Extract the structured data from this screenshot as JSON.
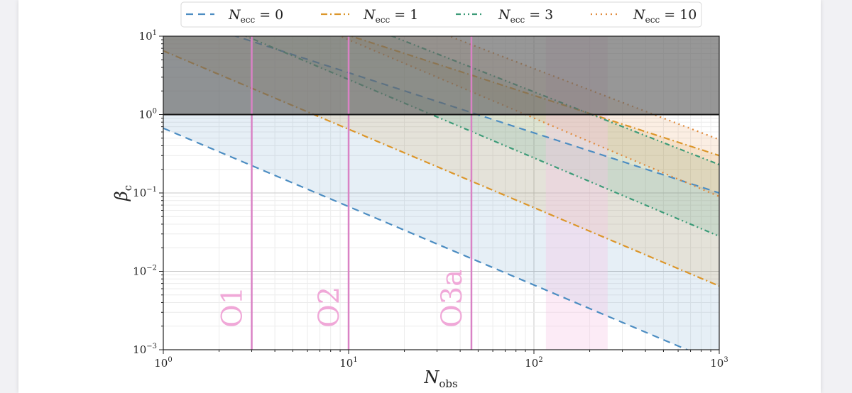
{
  "chart_data": {
    "type": "line",
    "xlabel": {
      "main": "N",
      "sub": "obs"
    },
    "ylabel": {
      "main": "β",
      "sub": "c"
    },
    "xscale": "log",
    "yscale": "log",
    "xlim": [
      1,
      1000
    ],
    "ylim": [
      0.001,
      10
    ],
    "grid": true,
    "legend_position": "top",
    "x_ticks": [
      {
        "base": "10",
        "exp": "0",
        "value": 1
      },
      {
        "base": "10",
        "exp": "1",
        "value": 10
      },
      {
        "base": "10",
        "exp": "2",
        "value": 100
      },
      {
        "base": "10",
        "exp": "3",
        "value": 1000
      }
    ],
    "y_ticks": [
      {
        "base": "10",
        "exp": "1",
        "value": 10
      },
      {
        "base": "10",
        "exp": "0",
        "value": 1
      },
      {
        "base": "10",
        "exp": "−1",
        "value": 0.1
      },
      {
        "base": "10",
        "exp": "−2",
        "value": 0.01
      },
      {
        "base": "10",
        "exp": "−3",
        "value": 0.001
      }
    ],
    "series": [
      {
        "legend_main": "N",
        "legend_sub": "ecc",
        "legend_rest": " = 0",
        "color": "#4c8dc2",
        "dash": "10,7",
        "lower": {
          "x": [
            1,
            1000
          ],
          "y": [
            0.67,
            0.00067
          ]
        },
        "upper": {
          "x": [
            1,
            1000
          ],
          "y": [
            20,
            0.1
          ]
        }
      },
      {
        "legend_main": "N",
        "legend_sub": "ecc",
        "legend_rest": " = 1",
        "color": "#dc962a",
        "dash": "9,4,2,4",
        "lower": {
          "x": [
            1,
            1000
          ],
          "y": [
            6.5,
            0.0065
          ]
        },
        "upper": {
          "x": [
            1,
            1000
          ],
          "y": [
            60,
            0.3
          ]
        }
      },
      {
        "legend_main": "N",
        "legend_sub": "ecc",
        "legend_rest": " = 3",
        "color": "#3c9b78",
        "dash": "7,4,2,4,2,4",
        "lower": {
          "x": [
            1,
            1000
          ],
          "y": [
            28,
            0.028
          ]
        },
        "upper": {
          "x": [
            1,
            1000
          ],
          "y": [
            140,
            0.23
          ]
        }
      },
      {
        "legend_main": "N",
        "legend_sub": "ecc",
        "legend_rest": " = 10",
        "color": "#e08a3c",
        "dash": "2,5",
        "lower": {
          "x": [
            1,
            1000
          ],
          "y": [
            90,
            0.09
          ]
        },
        "upper": {
          "x": [
            1,
            1000
          ],
          "y": [
            250,
            0.48
          ]
        }
      }
    ],
    "exclusion_region": {
      "y_from": 1,
      "y_to": 10,
      "color": "#666666",
      "opacity": 0.68
    },
    "vertical_lines": [
      {
        "label": "O1",
        "x": 3,
        "color": "#d982c5"
      },
      {
        "label": "O2",
        "x": 10,
        "color": "#d982c5"
      },
      {
        "label": "O3a",
        "x": 46,
        "color": "#d982c5"
      }
    ],
    "future_band": {
      "x_from": 116,
      "x_to": 250,
      "color": "#f5c6e6"
    }
  }
}
